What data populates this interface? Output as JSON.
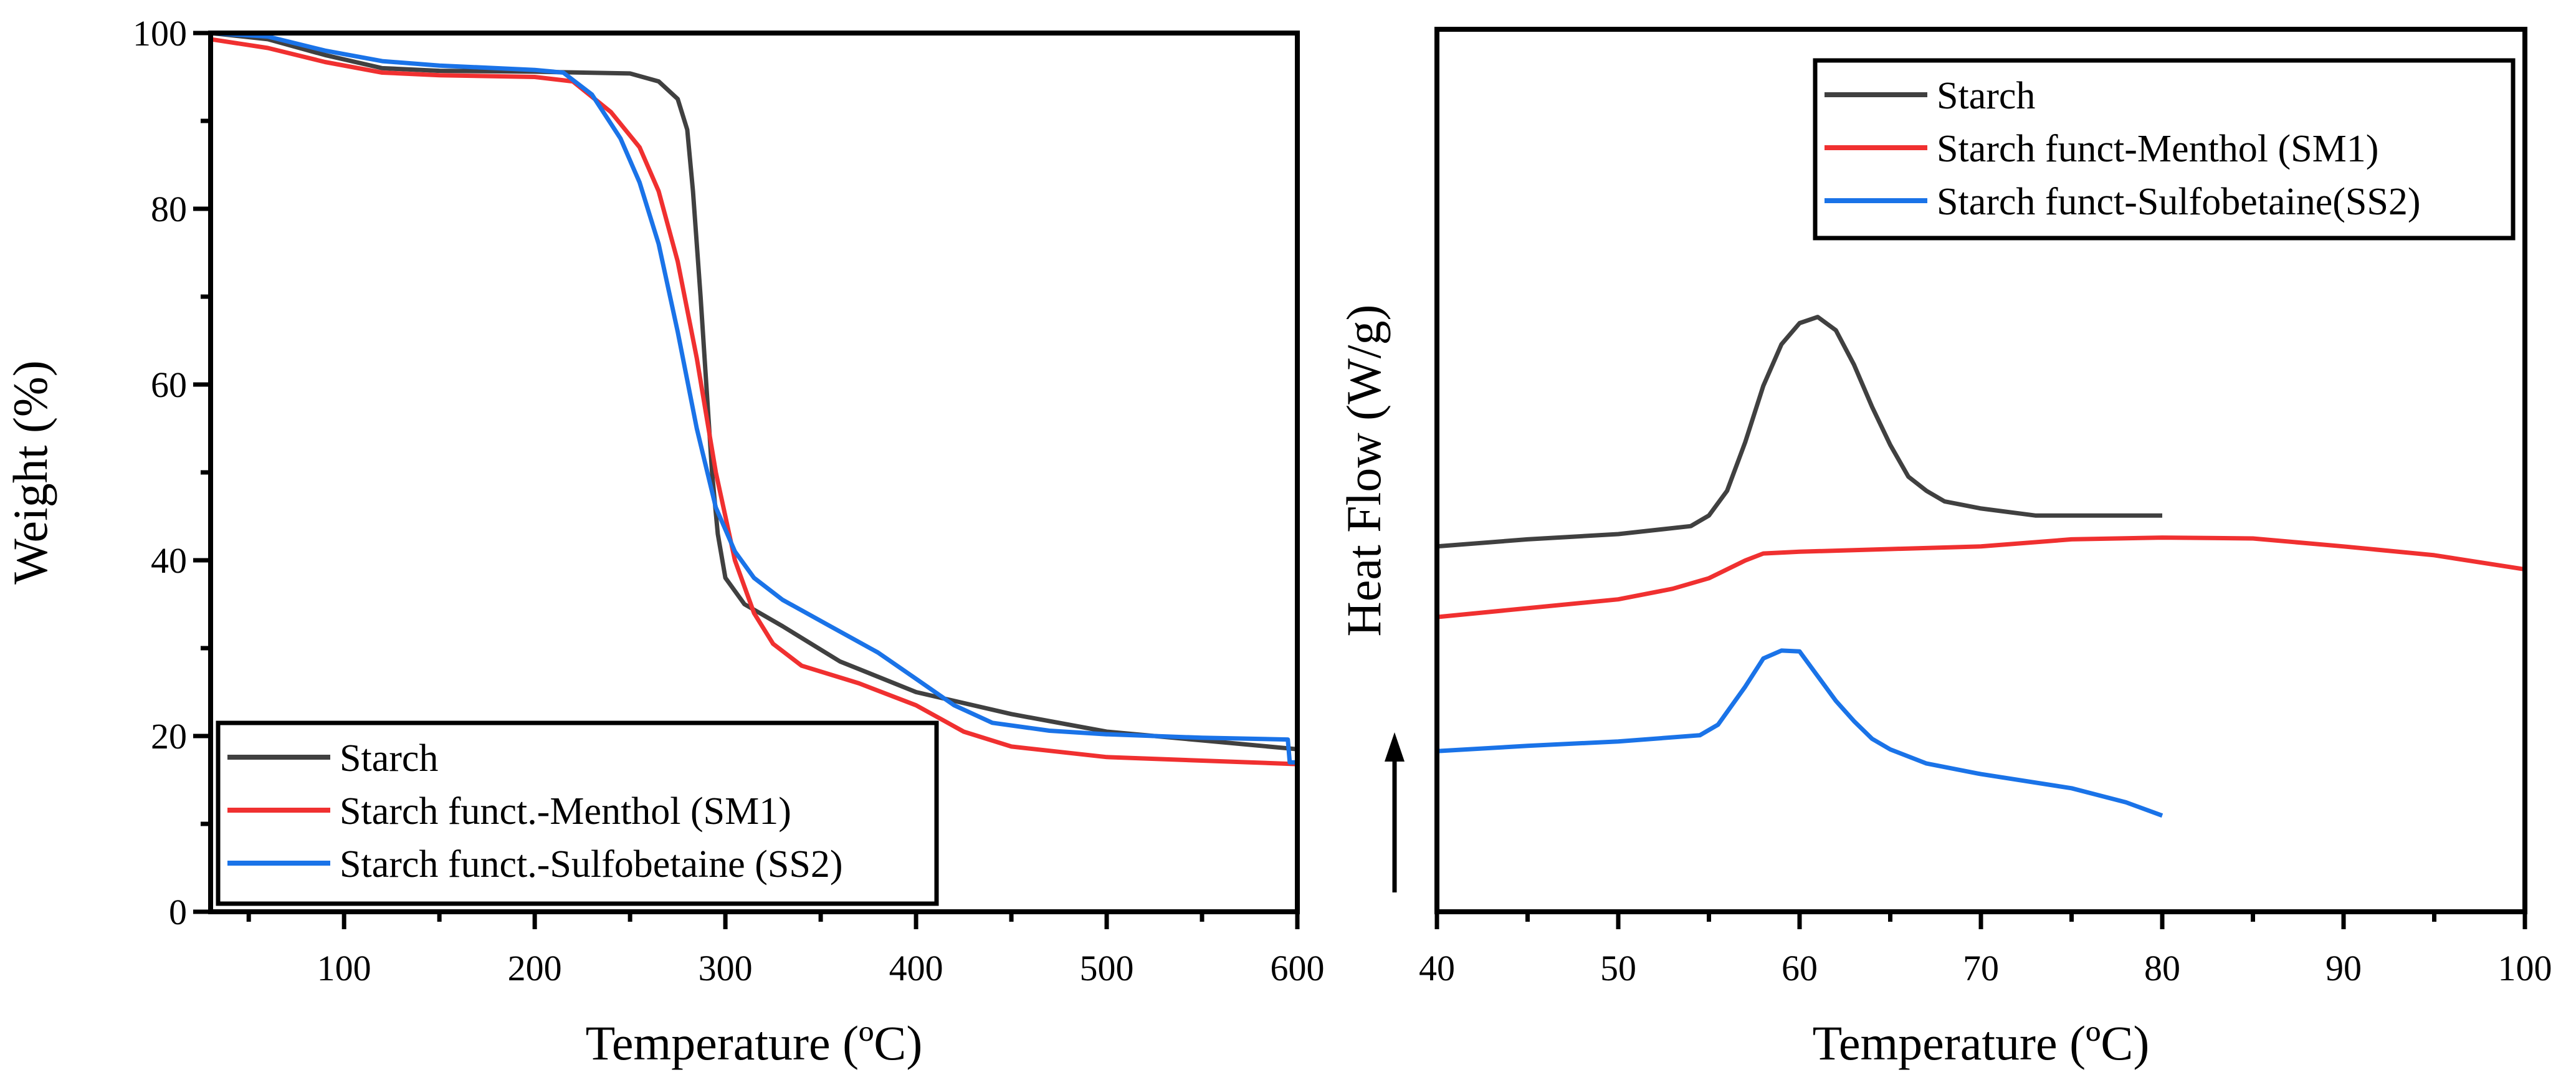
{
  "chart_data": [
    {
      "type": "line",
      "xlabel": "Temperature (ºC)",
      "ylabel": "Weight (%)",
      "xlim": [
        30,
        600
      ],
      "ylim": [
        0,
        100
      ],
      "xticks": [
        100,
        200,
        300,
        400,
        500,
        600
      ],
      "yticks": [
        0,
        20,
        40,
        60,
        80,
        100
      ],
      "grid": false,
      "legend_placement": "bottom-left",
      "series": [
        {
          "name": "Starch",
          "color": "#404040",
          "x": [
            30,
            60,
            90,
            120,
            150,
            200,
            250,
            265,
            275,
            280,
            283,
            287,
            290,
            293,
            296,
            300,
            310,
            330,
            360,
            400,
            450,
            500,
            550,
            600
          ],
          "y": [
            100,
            99.3,
            97.5,
            96,
            95.7,
            95.6,
            95.4,
            94.5,
            92.5,
            89,
            82,
            70,
            60,
            50,
            43,
            38,
            35,
            32.5,
            28.5,
            25,
            22.5,
            20.5,
            19.5,
            18.5
          ]
        },
        {
          "name": "Starch funct.-Menthol (SM1)",
          "color": "#f03030",
          "x": [
            30,
            60,
            90,
            120,
            150,
            200,
            220,
            240,
            255,
            265,
            275,
            285,
            295,
            305,
            315,
            325,
            340,
            370,
            400,
            425,
            450,
            500,
            550,
            600
          ],
          "y": [
            99.3,
            98.3,
            96.7,
            95.5,
            95.2,
            95,
            94.5,
            91,
            87,
            82,
            74,
            63,
            50,
            40,
            34,
            30.5,
            28,
            26,
            23.5,
            20.5,
            18.8,
            17.6,
            17.2,
            16.8
          ]
        },
        {
          "name": "Starch funct.-Sulfobetaine (SS2)",
          "color": "#1a73e8",
          "x": [
            30,
            60,
            90,
            120,
            150,
            200,
            215,
            230,
            245,
            255,
            265,
            275,
            285,
            295,
            305,
            315,
            330,
            355,
            380,
            400,
            420,
            440,
            470,
            500,
            550,
            595,
            596,
            600
          ],
          "y": [
            100,
            99.6,
            98,
            96.8,
            96.3,
            95.8,
            95.5,
            93,
            88,
            83,
            76,
            66,
            55,
            46,
            41,
            38,
            35.5,
            32.5,
            29.5,
            26.5,
            23.5,
            21.5,
            20.6,
            20.2,
            19.8,
            19.6,
            17,
            17
          ]
        }
      ]
    },
    {
      "type": "line",
      "xlabel": "Temperature (ºC)",
      "ylabel": "Heat Flow (W/g)",
      "xlim": [
        40,
        100
      ],
      "ylim": [
        0,
        100
      ],
      "xticks": [
        40,
        50,
        60,
        70,
        80,
        90,
        100
      ],
      "yticks": [],
      "grid": false,
      "legend_placement": "top-right",
      "series": [
        {
          "name": "Starch",
          "color": "#404040",
          "x": [
            40,
            45,
            50,
            54,
            55,
            56,
            57,
            58,
            59,
            60,
            61,
            62,
            63,
            64,
            65,
            66,
            67,
            68,
            70,
            73,
            80
          ],
          "y": [
            41.4,
            42.2,
            42.8,
            43.7,
            44.9,
            47.7,
            53.2,
            59.6,
            64.3,
            66.7,
            67.4,
            65.9,
            62,
            57.2,
            52.9,
            49.3,
            47.7,
            46.5,
            45.7,
            44.9,
            44.9
          ]
        },
        {
          "name": "Starch funct-Menthol (SM1)",
          "color": "#f03030",
          "x": [
            40,
            45,
            50,
            53,
            55,
            57,
            58,
            60,
            65,
            70,
            75,
            80,
            85,
            90,
            95,
            100
          ],
          "y": [
            33.4,
            34.4,
            35.4,
            36.6,
            37.8,
            39.8,
            40.6,
            40.8,
            41.1,
            41.4,
            42.2,
            42.4,
            42.3,
            41.4,
            40.4,
            38.8
          ]
        },
        {
          "name": "Starch funct-Sulfobetaine(SS2)",
          "color": "#1a73e8",
          "x": [
            40,
            45,
            50,
            54.5,
            55.5,
            57,
            58,
            59,
            60,
            61,
            62,
            63,
            64,
            65,
            67,
            70,
            75,
            78,
            80
          ],
          "y": [
            18.2,
            18.8,
            19.3,
            20,
            21.2,
            25.5,
            28.7,
            29.6,
            29.5,
            26.7,
            23.9,
            21.6,
            19.6,
            18.4,
            16.8,
            15.6,
            14,
            12.4,
            10.9
          ]
        }
      ]
    }
  ]
}
